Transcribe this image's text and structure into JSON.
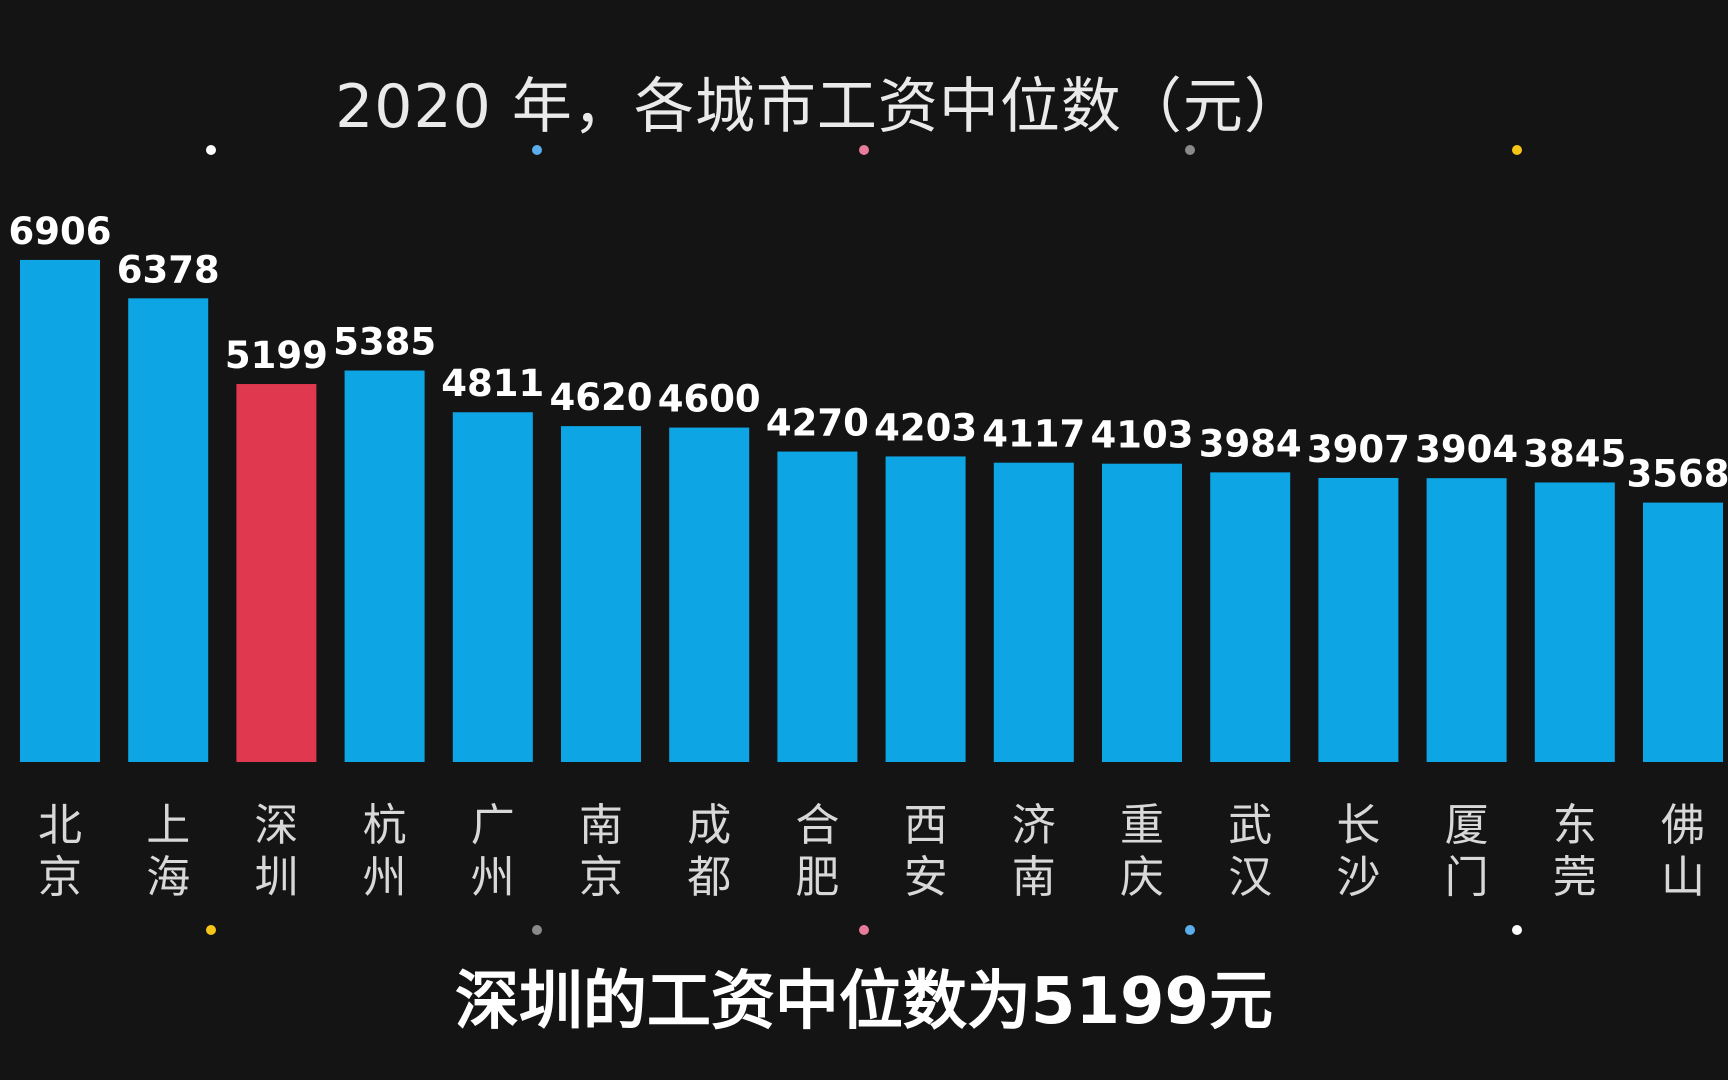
{
  "chart_data": {
    "type": "bar",
    "title": "2020 年，各城市工资中位数（元）",
    "xlabel": "",
    "ylabel": "",
    "categories": [
      "北京",
      "上海",
      "深圳",
      "杭州",
      "广州",
      "南京",
      "成都",
      "合肥",
      "西安",
      "济南",
      "重庆",
      "武汉",
      "长沙",
      "厦门",
      "东莞",
      "佛山"
    ],
    "values": [
      6906,
      6378,
      5199,
      5385,
      4811,
      4620,
      4600,
      4270,
      4203,
      4117,
      4103,
      3984,
      3907,
      3904,
      3845,
      3568
    ],
    "ylim": [
      0,
      7000
    ],
    "grid": false,
    "legend": "none",
    "highlight_index": 2,
    "colors": {
      "bar": "#0ea5e4",
      "highlight": "#e0384f",
      "background": "#141414"
    }
  },
  "subtitle": "深圳的工资中位数为5199元",
  "decor_dots": {
    "top": [
      "#ffffff",
      "#5aaeea",
      "#e87a9a",
      "#8a8a8a",
      "#f5c518"
    ],
    "bottom": [
      "#f5c518",
      "#8a8a8a",
      "#e87a9a",
      "#5aaeea",
      "#ffffff"
    ]
  }
}
